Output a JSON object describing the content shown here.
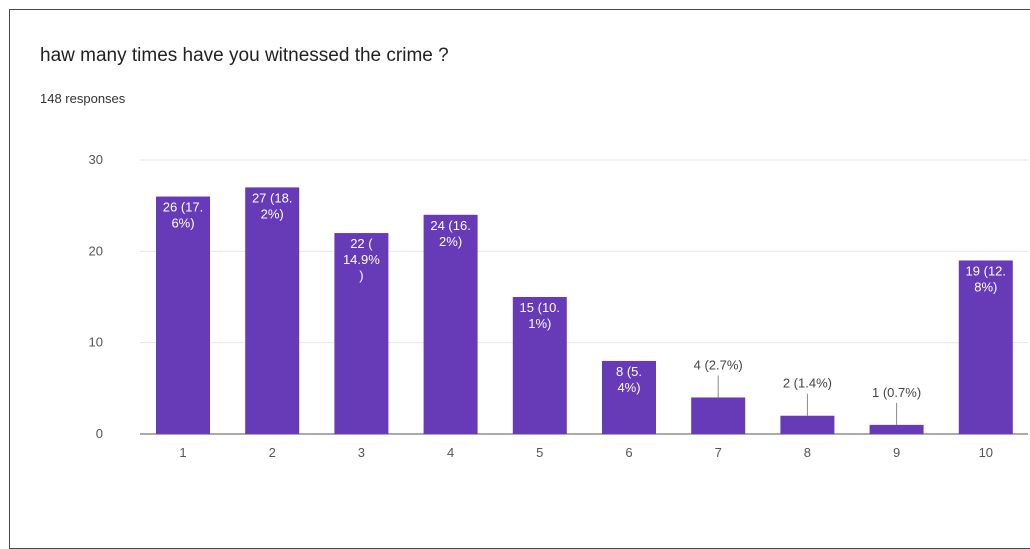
{
  "header": {
    "question": "haw many times have you witnessed the crime ?",
    "responses": "148 responses"
  },
  "chart_data": {
    "type": "bar",
    "categories": [
      "1",
      "2",
      "3",
      "4",
      "5",
      "6",
      "7",
      "8",
      "9",
      "10"
    ],
    "values": [
      26,
      27,
      22,
      24,
      15,
      8,
      4,
      2,
      1,
      19
    ],
    "data_labels": [
      [
        "26 (17.",
        "6%)"
      ],
      [
        "27 (18.",
        "2%)"
      ],
      [
        "22 (",
        "14.9%",
        ")"
      ],
      [
        "24 (16.",
        "2%)"
      ],
      [
        "15 (10.",
        "1%)"
      ],
      [
        "8 (5.",
        "4%)"
      ],
      [
        "4 (2.7%)"
      ],
      [
        "2 (1.4%)"
      ],
      [
        "1 (0.7%)"
      ],
      [
        "19 (12.",
        "8%)"
      ]
    ],
    "yticks": [
      "0",
      "10",
      "20",
      "30"
    ],
    "ylim": [
      0,
      30
    ],
    "grid": true,
    "bar_color": "#673ab7"
  }
}
